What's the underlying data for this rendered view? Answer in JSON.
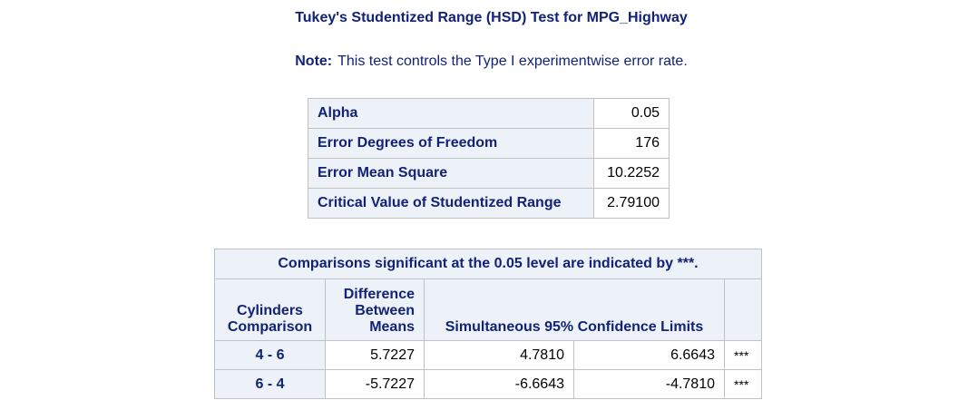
{
  "title": "Tukey's Studentized Range (HSD) Test for MPG_Highway",
  "note": {
    "label": "Note:",
    "text": "This test controls the Type I experimentwise error rate."
  },
  "parameters": [
    {
      "label": "Alpha",
      "value": "0.05"
    },
    {
      "label": "Error Degrees of Freedom",
      "value": "176"
    },
    {
      "label": "Error Mean Square",
      "value": "10.2252"
    },
    {
      "label": "Critical Value of Studentized Range",
      "value": "2.79100"
    }
  ],
  "comparisons": {
    "caption": "Comparisons significant at the 0.05 level are indicated by ***.",
    "headers": {
      "comparison_line1": "Cylinders",
      "comparison_line2": "Comparison",
      "difference_line1": "Difference",
      "difference_line2": "Between",
      "difference_line3": "Means",
      "limits": "Simultaneous 95% Confidence Limits"
    },
    "rows": [
      {
        "comparison": "4 - 6",
        "difference": "5.7227",
        "lower": "4.7810",
        "upper": "6.6643",
        "sig": "***"
      },
      {
        "comparison": "6 - 4",
        "difference": "-5.7227",
        "lower": "-6.6643",
        "upper": "-4.7810",
        "sig": "***"
      }
    ]
  },
  "colors": {
    "heading_text": "#112277",
    "header_bg": "#edf2f9",
    "border": "#c1c1c1"
  }
}
